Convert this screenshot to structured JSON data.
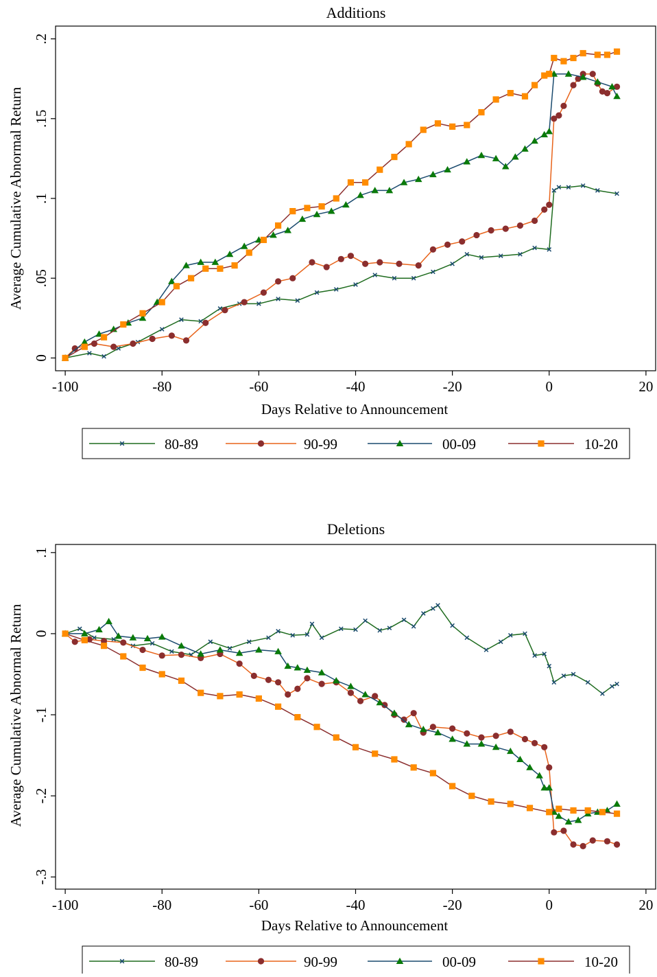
{
  "chart_data": [
    {
      "type": "line",
      "title": "Additions",
      "xlabel": "Days Relative to Announcement",
      "ylabel": "Average Cumulative Abnormal Return",
      "xlim": [
        -102,
        22
      ],
      "ylim": [
        -0.008,
        0.208
      ],
      "xticks": [
        -100,
        -80,
        -60,
        -40,
        -20,
        0,
        20
      ],
      "yticks": [
        0,
        0.05,
        0.1,
        0.15,
        0.2
      ],
      "ytick_labels": [
        "0",
        ".05",
        ".1",
        ".15",
        ".2"
      ],
      "grid": false,
      "legend_position": "bottom",
      "series": [
        {
          "name": "80-89",
          "line_color": "#1e6b1e",
          "marker": "x",
          "marker_color": "#1a4a6e",
          "x": [
            -100,
            -95,
            -92,
            -89,
            -85,
            -80,
            -76,
            -72,
            -68,
            -64,
            -60,
            -56,
            -52,
            -48,
            -44,
            -40,
            -36,
            -32,
            -28,
            -24,
            -20,
            -17,
            -14,
            -10,
            -6,
            -3,
            0,
            1,
            2,
            4,
            7,
            10,
            14
          ],
          "y": [
            0.0,
            0.003,
            0.001,
            0.006,
            0.01,
            0.018,
            0.024,
            0.023,
            0.031,
            0.034,
            0.034,
            0.037,
            0.036,
            0.041,
            0.043,
            0.046,
            0.052,
            0.05,
            0.05,
            0.054,
            0.059,
            0.065,
            0.063,
            0.064,
            0.065,
            0.069,
            0.068,
            0.105,
            0.107,
            0.107,
            0.108,
            0.105,
            0.103
          ]
        },
        {
          "name": "90-99",
          "line_color": "#e8631a",
          "marker": "circle",
          "marker_color": "#8b2e2e",
          "x": [
            -100,
            -98,
            -94,
            -90,
            -86,
            -82,
            -78,
            -75,
            -71,
            -67,
            -63,
            -59,
            -56,
            -53,
            -49,
            -46,
            -43,
            -41,
            -38,
            -35,
            -31,
            -27,
            -24,
            -21,
            -18,
            -15,
            -12,
            -9,
            -6,
            -3,
            -1,
            0,
            1,
            2,
            3,
            5,
            6,
            7,
            9,
            10,
            11,
            12,
            14
          ],
          "y": [
            0.0,
            0.006,
            0.009,
            0.007,
            0.009,
            0.012,
            0.014,
            0.011,
            0.022,
            0.03,
            0.035,
            0.041,
            0.048,
            0.05,
            0.06,
            0.057,
            0.062,
            0.064,
            0.059,
            0.06,
            0.059,
            0.058,
            0.068,
            0.071,
            0.073,
            0.077,
            0.08,
            0.081,
            0.083,
            0.086,
            0.093,
            0.096,
            0.15,
            0.152,
            0.158,
            0.171,
            0.175,
            0.178,
            0.178,
            0.172,
            0.167,
            0.166,
            0.17
          ]
        },
        {
          "name": "00-09",
          "line_color": "#1a4a6e",
          "marker": "triangle",
          "marker_color": "#0a7a0a",
          "x": [
            -100,
            -96,
            -93,
            -90,
            -87,
            -84,
            -81,
            -78,
            -75,
            -72,
            -69,
            -66,
            -63,
            -60,
            -57,
            -54,
            -51,
            -48,
            -45,
            -42,
            -39,
            -36,
            -33,
            -30,
            -27,
            -24,
            -21,
            -17,
            -14,
            -11,
            -9,
            -7,
            -5,
            -3,
            -1,
            0,
            1,
            4,
            7,
            10,
            13,
            14
          ],
          "y": [
            0.0,
            0.01,
            0.015,
            0.018,
            0.022,
            0.025,
            0.035,
            0.048,
            0.058,
            0.06,
            0.06,
            0.065,
            0.07,
            0.074,
            0.077,
            0.08,
            0.087,
            0.09,
            0.092,
            0.096,
            0.102,
            0.105,
            0.105,
            0.11,
            0.112,
            0.115,
            0.118,
            0.123,
            0.127,
            0.125,
            0.12,
            0.126,
            0.131,
            0.136,
            0.14,
            0.142,
            0.178,
            0.178,
            0.176,
            0.173,
            0.17,
            0.164
          ]
        },
        {
          "name": "10-20",
          "line_color": "#8b2e2e",
          "marker": "square",
          "marker_color": "#ff8c00",
          "x": [
            -100,
            -96,
            -92,
            -88,
            -84,
            -80,
            -77,
            -74,
            -71,
            -68,
            -65,
            -62,
            -59,
            -56,
            -53,
            -50,
            -47,
            -44,
            -41,
            -38,
            -35,
            -32,
            -29,
            -26,
            -23,
            -20,
            -17,
            -14,
            -11,
            -8,
            -5,
            -3,
            -1,
            0,
            1,
            3,
            5,
            7,
            10,
            12,
            14
          ],
          "y": [
            0.0,
            0.007,
            0.013,
            0.021,
            0.028,
            0.035,
            0.045,
            0.05,
            0.056,
            0.056,
            0.058,
            0.066,
            0.074,
            0.083,
            0.092,
            0.094,
            0.095,
            0.1,
            0.11,
            0.11,
            0.118,
            0.126,
            0.134,
            0.143,
            0.147,
            0.145,
            0.146,
            0.154,
            0.162,
            0.166,
            0.164,
            0.171,
            0.177,
            0.178,
            0.188,
            0.186,
            0.188,
            0.191,
            0.19,
            0.19,
            0.192
          ]
        }
      ]
    },
    {
      "type": "line",
      "title": "Deletions",
      "xlabel": "Days Relative to Announcement",
      "ylabel": "Average Cumulative Abnormal Return",
      "xlim": [
        -102,
        22
      ],
      "ylim": [
        -0.315,
        0.11
      ],
      "xticks": [
        -100,
        -80,
        -60,
        -40,
        -20,
        0,
        20
      ],
      "yticks": [
        -0.3,
        -0.2,
        -0.1,
        0,
        0.1
      ],
      "ytick_labels": [
        "-.3",
        "-.2",
        "-.1",
        "0",
        ".1"
      ],
      "grid": false,
      "legend_position": "bottom",
      "series": [
        {
          "name": "80-89",
          "line_color": "#1e6b1e",
          "marker": "x",
          "marker_color": "#1a4a6e",
          "x": [
            -100,
            -97,
            -94,
            -90,
            -86,
            -82,
            -78,
            -74,
            -70,
            -66,
            -62,
            -58,
            -56,
            -53,
            -50,
            -49,
            -47,
            -43,
            -40,
            -38,
            -35,
            -33,
            -30,
            -28,
            -26,
            -24,
            -23,
            -20,
            -17,
            -13,
            -10,
            -8,
            -5,
            -3,
            -1,
            0,
            1,
            3,
            5,
            8,
            11,
            13,
            14
          ],
          "y": [
            0.0,
            0.006,
            -0.005,
            -0.007,
            -0.015,
            -0.012,
            -0.022,
            -0.026,
            -0.01,
            -0.018,
            -0.01,
            -0.005,
            0.003,
            -0.002,
            -0.001,
            0.012,
            -0.005,
            0.006,
            0.005,
            0.016,
            0.004,
            0.007,
            0.017,
            0.009,
            0.025,
            0.031,
            0.035,
            0.01,
            -0.005,
            -0.02,
            -0.01,
            -0.002,
            0.0,
            -0.027,
            -0.025,
            -0.04,
            -0.06,
            -0.052,
            -0.05,
            -0.06,
            -0.074,
            -0.065,
            -0.062
          ]
        },
        {
          "name": "90-99",
          "line_color": "#e8631a",
          "marker": "circle",
          "marker_color": "#8b2e2e",
          "x": [
            -100,
            -98,
            -95,
            -92,
            -88,
            -84,
            -80,
            -76,
            -72,
            -68,
            -64,
            -61,
            -58,
            -56,
            -54,
            -52,
            -50,
            -47,
            -44,
            -41,
            -39,
            -36,
            -34,
            -32,
            -30,
            -28,
            -26,
            -24,
            -20,
            -17,
            -14,
            -11,
            -8,
            -5,
            -3,
            -1,
            0,
            1,
            3,
            5,
            7,
            9,
            12,
            14
          ],
          "y": [
            0.0,
            -0.01,
            -0.007,
            -0.009,
            -0.011,
            -0.02,
            -0.027,
            -0.026,
            -0.03,
            -0.025,
            -0.037,
            -0.052,
            -0.057,
            -0.06,
            -0.075,
            -0.068,
            -0.055,
            -0.062,
            -0.06,
            -0.073,
            -0.083,
            -0.077,
            -0.088,
            -0.1,
            -0.106,
            -0.098,
            -0.122,
            -0.115,
            -0.117,
            -0.123,
            -0.128,
            -0.126,
            -0.121,
            -0.13,
            -0.135,
            -0.14,
            -0.165,
            -0.245,
            -0.243,
            -0.26,
            -0.262,
            -0.255,
            -0.256,
            -0.26
          ]
        },
        {
          "name": "00-09",
          "line_color": "#1a4a6e",
          "marker": "triangle",
          "marker_color": "#0a7a0a",
          "x": [
            -100,
            -96,
            -93,
            -91,
            -89,
            -86,
            -83,
            -80,
            -76,
            -72,
            -68,
            -64,
            -60,
            -56,
            -54,
            -52,
            -50,
            -47,
            -44,
            -41,
            -38,
            -35,
            -32,
            -29,
            -26,
            -23,
            -20,
            -17,
            -14,
            -11,
            -8,
            -6,
            -4,
            -2,
            -1,
            0,
            1,
            2,
            4,
            6,
            8,
            10,
            12,
            14
          ],
          "y": [
            0.0,
            0.0,
            0.005,
            0.015,
            -0.003,
            -0.005,
            -0.006,
            -0.004,
            -0.015,
            -0.025,
            -0.02,
            -0.024,
            -0.02,
            -0.022,
            -0.04,
            -0.042,
            -0.045,
            -0.048,
            -0.058,
            -0.065,
            -0.075,
            -0.085,
            -0.098,
            -0.112,
            -0.118,
            -0.122,
            -0.13,
            -0.136,
            -0.136,
            -0.14,
            -0.145,
            -0.155,
            -0.165,
            -0.175,
            -0.19,
            -0.19,
            -0.22,
            -0.225,
            -0.232,
            -0.23,
            -0.222,
            -0.22,
            -0.218,
            -0.21
          ]
        },
        {
          "name": "10-20",
          "line_color": "#8b2e2e",
          "marker": "square",
          "marker_color": "#ff8c00",
          "x": [
            -100,
            -96,
            -92,
            -88,
            -84,
            -80,
            -76,
            -72,
            -68,
            -64,
            -60,
            -56,
            -52,
            -48,
            -44,
            -40,
            -36,
            -32,
            -28,
            -24,
            -20,
            -16,
            -12,
            -8,
            -4,
            0,
            2,
            5,
            8,
            11,
            14
          ],
          "y": [
            0.0,
            -0.008,
            -0.015,
            -0.028,
            -0.042,
            -0.05,
            -0.058,
            -0.073,
            -0.077,
            -0.075,
            -0.08,
            -0.09,
            -0.103,
            -0.115,
            -0.128,
            -0.14,
            -0.148,
            -0.155,
            -0.165,
            -0.172,
            -0.188,
            -0.2,
            -0.207,
            -0.21,
            -0.215,
            -0.22,
            -0.216,
            -0.218,
            -0.218,
            -0.22,
            -0.222
          ]
        }
      ]
    }
  ]
}
